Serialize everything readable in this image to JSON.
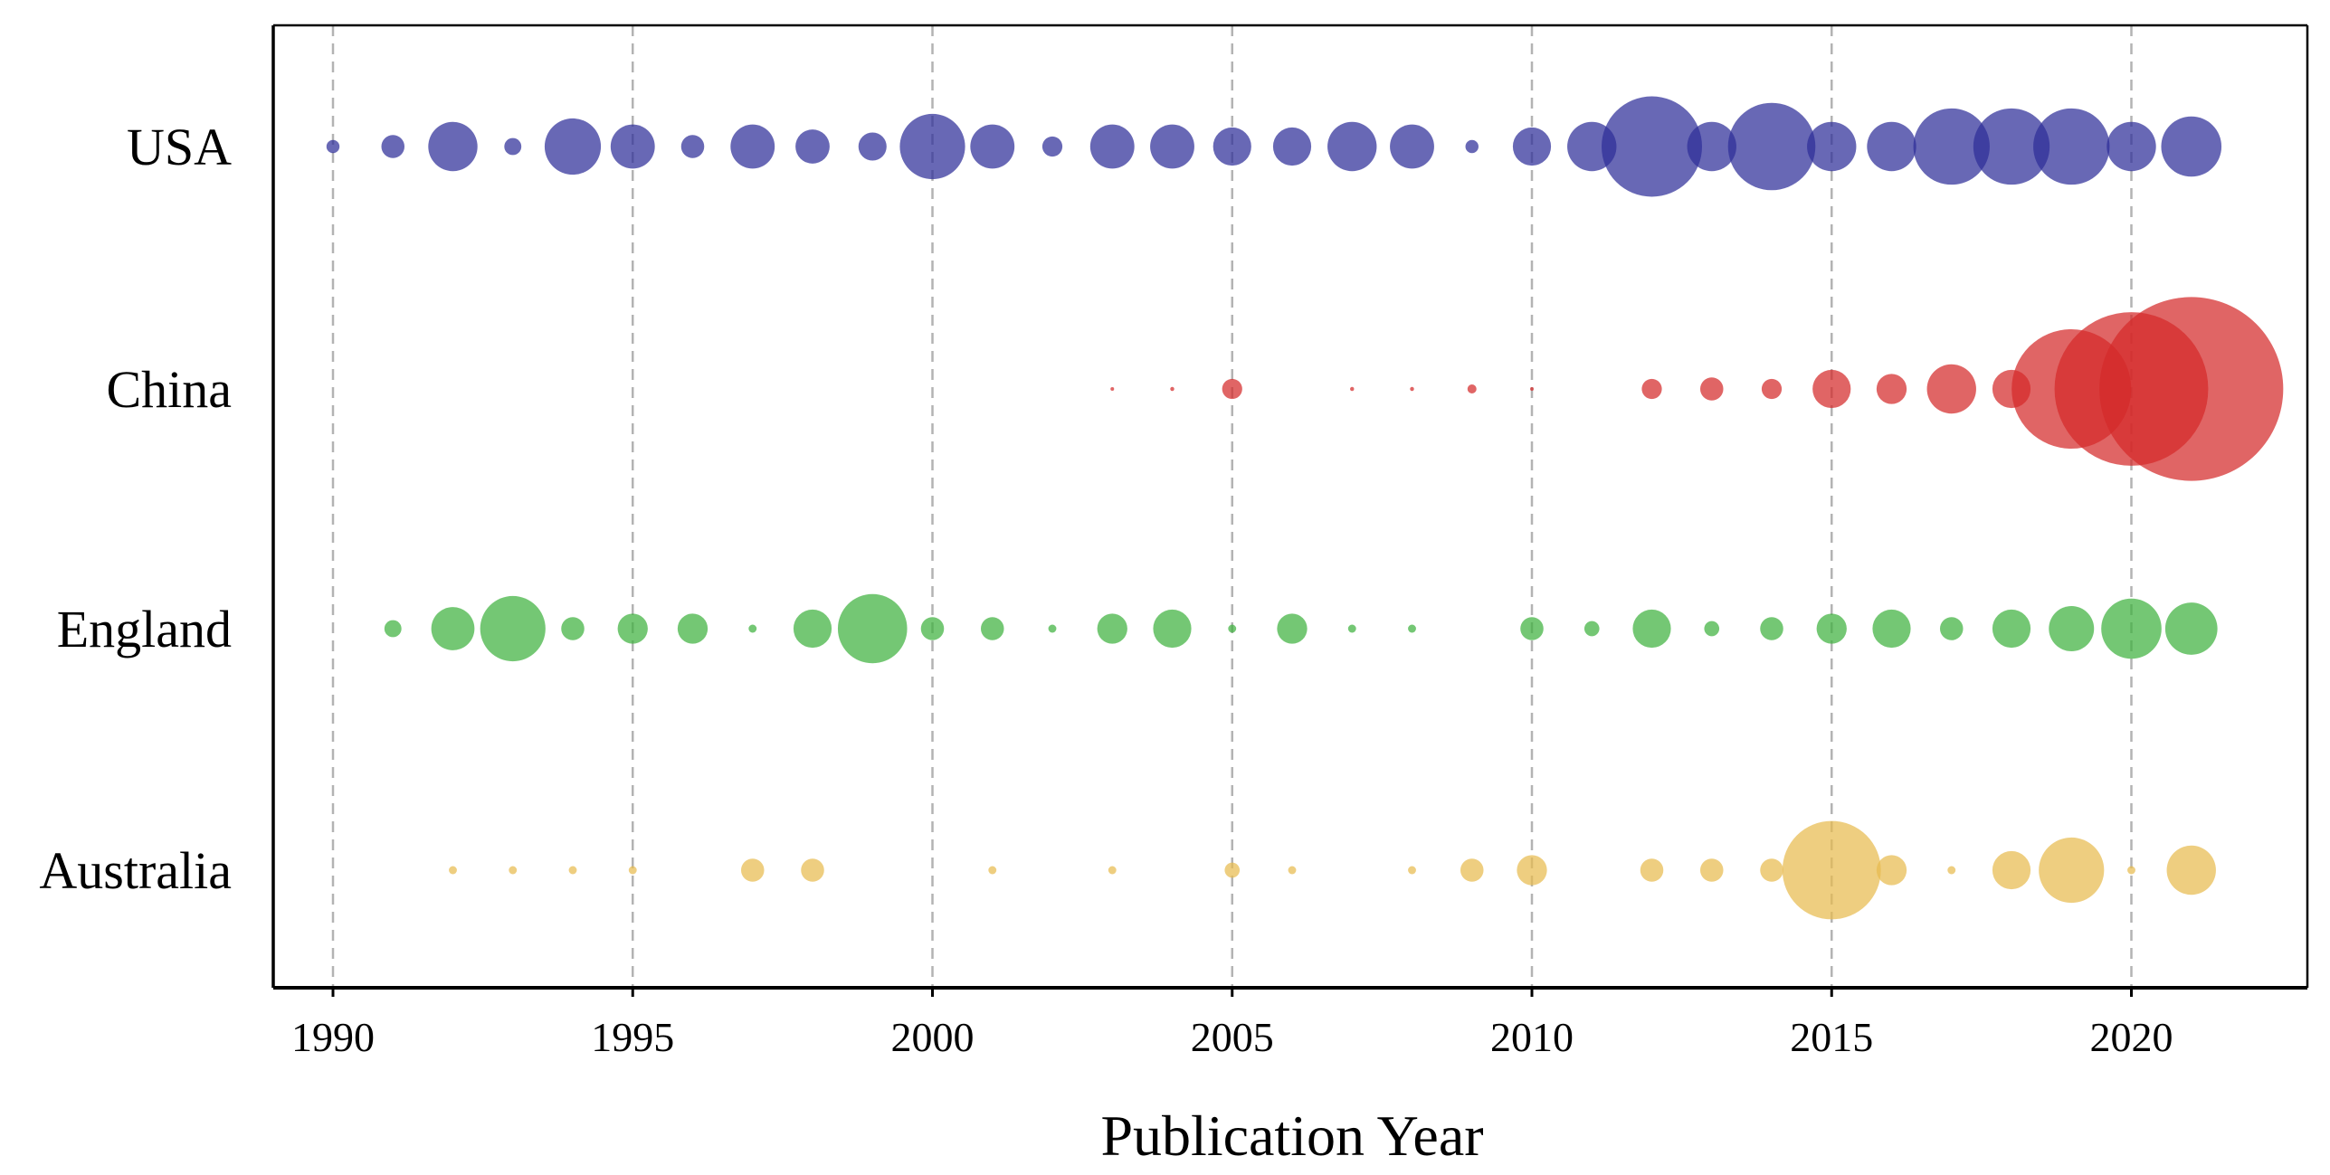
{
  "chart_data": {
    "type": "scatter",
    "subtype": "bubble",
    "title": "",
    "xlabel": "Publication Year",
    "ylabel": "",
    "xlim": [
      1989,
      2023
    ],
    "xticks": [
      1990,
      1995,
      2000,
      2005,
      2010,
      2015,
      2020
    ],
    "grid": "vertical dashed at x ticks",
    "size_unit": "relative publication count (bubble diameter, USA 2012 = 100)",
    "series": [
      {
        "name": "USA",
        "color": "#2e2e99",
        "points": [
          {
            "x": 1990,
            "size": 13
          },
          {
            "x": 1991,
            "size": 23
          },
          {
            "x": 1992,
            "size": 49
          },
          {
            "x": 1993,
            "size": 17
          },
          {
            "x": 1994,
            "size": 56
          },
          {
            "x": 1995,
            "size": 44
          },
          {
            "x": 1996,
            "size": 23
          },
          {
            "x": 1997,
            "size": 44
          },
          {
            "x": 1998,
            "size": 34
          },
          {
            "x": 1999,
            "size": 28
          },
          {
            "x": 2000,
            "size": 65
          },
          {
            "x": 2001,
            "size": 44
          },
          {
            "x": 2002,
            "size": 20
          },
          {
            "x": 2003,
            "size": 44
          },
          {
            "x": 2004,
            "size": 44
          },
          {
            "x": 2005,
            "size": 38
          },
          {
            "x": 2006,
            "size": 38
          },
          {
            "x": 2007,
            "size": 49
          },
          {
            "x": 2008,
            "size": 44
          },
          {
            "x": 2009,
            "size": 13
          },
          {
            "x": 2010,
            "size": 38
          },
          {
            "x": 2011,
            "size": 49
          },
          {
            "x": 2012,
            "size": 100
          },
          {
            "x": 2013,
            "size": 49
          },
          {
            "x": 2014,
            "size": 87
          },
          {
            "x": 2015,
            "size": 49
          },
          {
            "x": 2016,
            "size": 49
          },
          {
            "x": 2017,
            "size": 76
          },
          {
            "x": 2018,
            "size": 76
          },
          {
            "x": 2019,
            "size": 76
          },
          {
            "x": 2020,
            "size": 49
          },
          {
            "x": 2021,
            "size": 60
          }
        ]
      },
      {
        "name": "China",
        "color": "#d42a2a",
        "points": [
          {
            "x": 2003,
            "size": 3
          },
          {
            "x": 2004,
            "size": 4
          },
          {
            "x": 2005,
            "size": 20
          },
          {
            "x": 2007,
            "size": 4
          },
          {
            "x": 2008,
            "size": 4
          },
          {
            "x": 2009,
            "size": 9
          },
          {
            "x": 2010,
            "size": 3
          },
          {
            "x": 2012,
            "size": 20
          },
          {
            "x": 2013,
            "size": 23
          },
          {
            "x": 2014,
            "size": 20
          },
          {
            "x": 2015,
            "size": 38
          },
          {
            "x": 2016,
            "size": 30
          },
          {
            "x": 2017,
            "size": 49
          },
          {
            "x": 2018,
            "size": 38
          },
          {
            "x": 2019,
            "size": 119
          },
          {
            "x": 2020,
            "size": 153
          },
          {
            "x": 2021,
            "size": 183
          }
        ]
      },
      {
        "name": "England",
        "color": "#3fb23f",
        "points": [
          {
            "x": 1991,
            "size": 17
          },
          {
            "x": 1992,
            "size": 43
          },
          {
            "x": 1993,
            "size": 65
          },
          {
            "x": 1994,
            "size": 23
          },
          {
            "x": 1995,
            "size": 30
          },
          {
            "x": 1996,
            "size": 30
          },
          {
            "x": 1997,
            "size": 8
          },
          {
            "x": 1998,
            "size": 38
          },
          {
            "x": 1999,
            "size": 69
          },
          {
            "x": 2000,
            "size": 23
          },
          {
            "x": 2001,
            "size": 23
          },
          {
            "x": 2002,
            "size": 8
          },
          {
            "x": 2003,
            "size": 30
          },
          {
            "x": 2004,
            "size": 38
          },
          {
            "x": 2005,
            "size": 8
          },
          {
            "x": 2006,
            "size": 30
          },
          {
            "x": 2007,
            "size": 8
          },
          {
            "x": 2008,
            "size": 8
          },
          {
            "x": 2010,
            "size": 23
          },
          {
            "x": 2011,
            "size": 15
          },
          {
            "x": 2012,
            "size": 38
          },
          {
            "x": 2013,
            "size": 15
          },
          {
            "x": 2014,
            "size": 23
          },
          {
            "x": 2015,
            "size": 30
          },
          {
            "x": 2016,
            "size": 38
          },
          {
            "x": 2017,
            "size": 23
          },
          {
            "x": 2018,
            "size": 38
          },
          {
            "x": 2019,
            "size": 45
          },
          {
            "x": 2020,
            "size": 60
          },
          {
            "x": 2021,
            "size": 52
          }
        ]
      },
      {
        "name": "Australia",
        "color": "#e8bb4f",
        "points": [
          {
            "x": 1992,
            "size": 8
          },
          {
            "x": 1993,
            "size": 8
          },
          {
            "x": 1994,
            "size": 8
          },
          {
            "x": 1995,
            "size": 8
          },
          {
            "x": 1997,
            "size": 23
          },
          {
            "x": 1998,
            "size": 23
          },
          {
            "x": 2001,
            "size": 8
          },
          {
            "x": 2003,
            "size": 8
          },
          {
            "x": 2005,
            "size": 15
          },
          {
            "x": 2006,
            "size": 8
          },
          {
            "x": 2008,
            "size": 8
          },
          {
            "x": 2009,
            "size": 23
          },
          {
            "x": 2010,
            "size": 30
          },
          {
            "x": 2012,
            "size": 23
          },
          {
            "x": 2013,
            "size": 23
          },
          {
            "x": 2014,
            "size": 23
          },
          {
            "x": 2015,
            "size": 98
          },
          {
            "x": 2016,
            "size": 30
          },
          {
            "x": 2017,
            "size": 8
          },
          {
            "x": 2018,
            "size": 38
          },
          {
            "x": 2019,
            "size": 65
          },
          {
            "x": 2020,
            "size": 8
          },
          {
            "x": 2021,
            "size": 49
          }
        ]
      }
    ]
  }
}
